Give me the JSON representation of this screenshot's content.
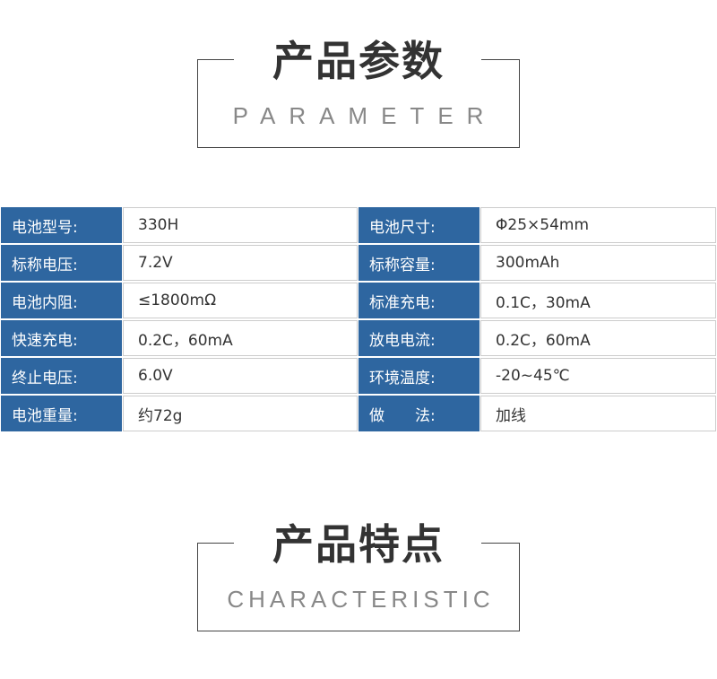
{
  "section1": {
    "title": "产品参数",
    "subtitle": "PARAMETER"
  },
  "params": [
    {
      "k1": "电池型号:",
      "v1": "330H",
      "k2": "电池尺寸:",
      "v2": "Φ25×54mm"
    },
    {
      "k1": "标称电压:",
      "v1": "7.2V",
      "k2": "标称容量:",
      "v2": "300mAh"
    },
    {
      "k1": "电池内阻:",
      "v1": "≤1800mΩ",
      "k2": "标准充电:",
      "v2": "0.1C，30mA"
    },
    {
      "k1": "快速充电:",
      "v1": "0.2C，60mA",
      "k2": "放电电流:",
      "v2": "0.2C，60mA"
    },
    {
      "k1": "终止电压:",
      "v1": "6.0V",
      "k2": "环境温度:",
      "v2": "-20~45℃"
    },
    {
      "k1": "电池重量:",
      "v1": "约72g",
      "k2": "做　　法:",
      "v2": "加线"
    }
  ],
  "section2": {
    "title": "产品特点",
    "subtitle": "CHARACTERISTIC"
  },
  "colors": {
    "label_bg": "#2e66a0"
  }
}
